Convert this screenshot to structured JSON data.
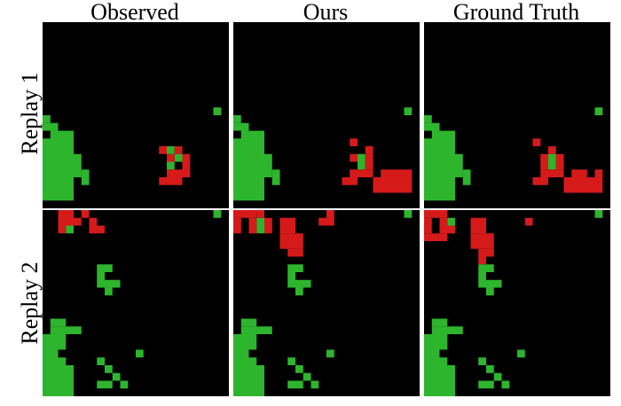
{
  "columns": [
    "Observed",
    "Ours",
    "Ground Truth"
  ],
  "rows": [
    "Replay 1",
    "Replay 2"
  ]
}
